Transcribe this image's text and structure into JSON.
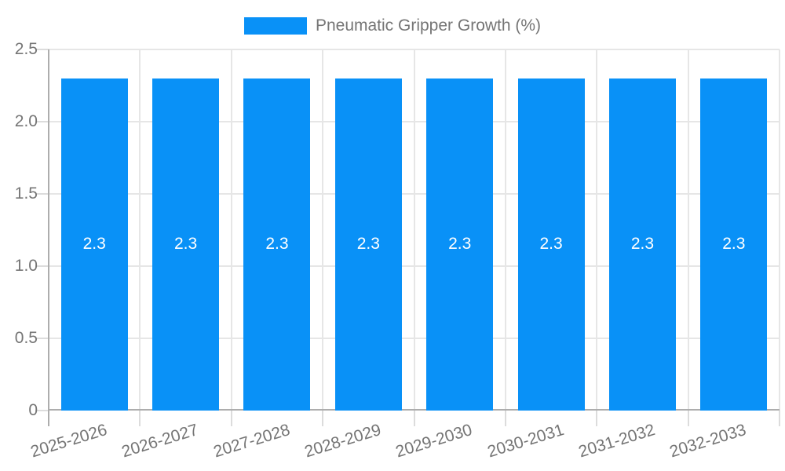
{
  "legend": {
    "label": "Pneumatic Gripper Growth (%)"
  },
  "chart_data": {
    "type": "bar",
    "title": "",
    "xlabel": "",
    "ylabel": "",
    "categories": [
      "2025-2026",
      "2026-2027",
      "2027-2028",
      "2028-2029",
      "2029-2030",
      "2030-2031",
      "2031-2032",
      "2032-2033"
    ],
    "series": [
      {
        "name": "Pneumatic Gripper Growth (%)",
        "values": [
          2.3,
          2.3,
          2.3,
          2.3,
          2.3,
          2.3,
          2.3,
          2.3
        ]
      }
    ],
    "bar_value_labels": [
      "2.3",
      "2.3",
      "2.3",
      "2.3",
      "2.3",
      "2.3",
      "2.3",
      "2.3"
    ],
    "ylim": [
      0,
      2.5
    ],
    "yticks": [
      {
        "value": 0,
        "label": "0"
      },
      {
        "value": 0.5,
        "label": "0.5"
      },
      {
        "value": 1.0,
        "label": "1.0"
      },
      {
        "value": 1.5,
        "label": "1.5"
      },
      {
        "value": 2.0,
        "label": "2.0"
      },
      {
        "value": 2.5,
        "label": "2.5"
      }
    ],
    "grid": true,
    "legend_position": "top-center",
    "colors": {
      "bar": "#0991F7",
      "bar_label": "#FFFFFF",
      "gridline": "#E6E6E6",
      "tick_mark": "#DCDCDC",
      "axis_line": "#ADADAD",
      "tick_text": "#757575",
      "background": "#FFFFFF"
    }
  }
}
